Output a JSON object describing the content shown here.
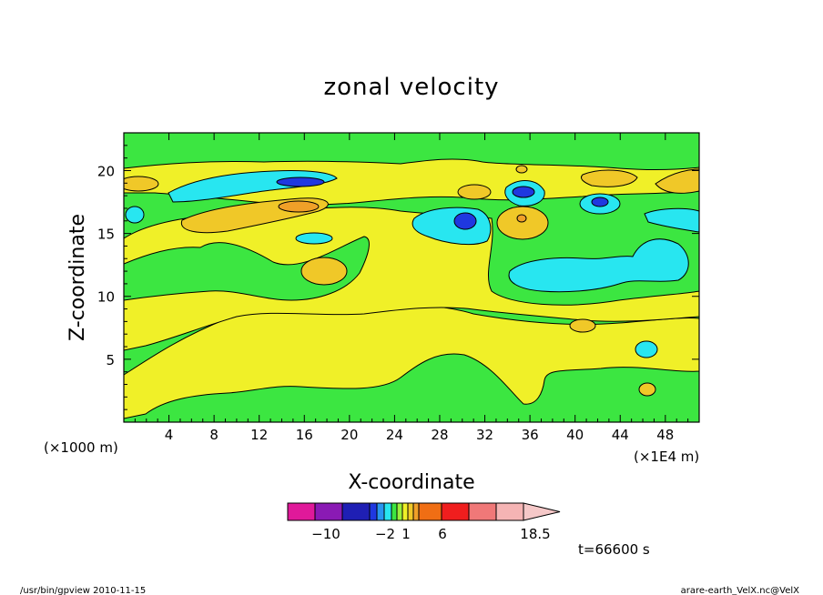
{
  "chart_data": {
    "type": "heatmap",
    "title": "zonal velocity",
    "xlabel": "X-coordinate",
    "ylabel": "Z-coordinate",
    "x_units_left": "(×1000 m)",
    "x_units_right": "(×1E4 m)",
    "x_ticks": [
      4,
      8,
      12,
      16,
      20,
      24,
      28,
      32,
      36,
      40,
      44,
      48
    ],
    "y_ticks": [
      5,
      10,
      15,
      20
    ],
    "xlim": [
      0,
      51
    ],
    "ylim": [
      0,
      23
    ],
    "time_label": "t=66600 s",
    "colorbar": {
      "tick_labels": [
        "−10",
        "−2",
        "1",
        "6",
        "18.5"
      ],
      "colors": [
        "#e0199a",
        "#8a1ab4",
        "#1f1fb4",
        "#1f38e0",
        "#2896f0",
        "#28e6f0",
        "#3ce641",
        "#9bf03c",
        "#f0f028",
        "#f0c828",
        "#f0a028",
        "#f06e14",
        "#f01e1e",
        "#f07878",
        "#f5b4b4",
        "#f5c8c8"
      ]
    },
    "regions": [
      {
        "level": "green",
        "color": "#3ce641",
        "x": [
          0,
          51
        ],
        "y": [
          0,
          23
        ]
      },
      {
        "level": "yellow",
        "color": "#f0f028",
        "x": [
          0,
          51
        ],
        "y": [
          1,
          7
        ]
      },
      {
        "level": "yellow",
        "color": "#f0f028",
        "x": [
          2,
          22
        ],
        "y": [
          8,
          17
        ]
      },
      {
        "level": "yellow",
        "color": "#f0f028",
        "x": [
          24,
          36
        ],
        "y": [
          9,
          15
        ]
      },
      {
        "level": "cyan",
        "color": "#28e6f0",
        "x": [
          34,
          50
        ],
        "y": [
          10,
          13
        ]
      },
      {
        "level": "cyan",
        "color": "#28e6f0",
        "x": [
          4,
          18
        ],
        "y": [
          17.7,
          19.3
        ]
      },
      {
        "level": "blue",
        "color": "#1f38e0",
        "x": [
          14,
          17
        ],
        "y": [
          18.4,
          19
        ]
      },
      {
        "level": "orange",
        "color": "#f0c828",
        "x": [
          6,
          18
        ],
        "y": [
          15.5,
          17.5
        ]
      },
      {
        "level": "cyan",
        "color": "#28e6f0",
        "x": [
          26,
          31
        ],
        "y": [
          15,
          17
        ]
      },
      {
        "level": "blue",
        "color": "#1f38e0",
        "x": [
          29.5,
          31
        ],
        "y": [
          15.2,
          16.5
        ]
      },
      {
        "level": "cyan",
        "color": "#28e6f0",
        "x": [
          33.5,
          37
        ],
        "y": [
          17.5,
          19
        ]
      },
      {
        "level": "blue",
        "color": "#1f38e0",
        "x": [
          34.5,
          36
        ],
        "y": [
          17.8,
          18.8
        ]
      },
      {
        "level": "orange",
        "color": "#f0c828",
        "x": [
          33,
          38
        ],
        "y": [
          14.5,
          17
        ]
      },
      {
        "level": "orange",
        "color": "#f0c828",
        "x": [
          16,
          20
        ],
        "y": [
          10.5,
          13
        ]
      },
      {
        "level": "orange",
        "color": "#f0c828",
        "x": [
          39,
          42
        ],
        "y": [
          7,
          8.5
        ]
      },
      {
        "level": "cyan",
        "color": "#28e6f0",
        "x": [
          45,
          47
        ],
        "y": [
          5,
          6
        ]
      },
      {
        "level": "cyan",
        "color": "#28e6f0",
        "x": [
          41,
          44
        ],
        "y": [
          16.5,
          18
        ]
      },
      {
        "level": "cyan",
        "color": "#28e6f0",
        "x": [
          46,
          51
        ],
        "y": [
          15,
          17
        ]
      }
    ]
  },
  "footer": {
    "left": "/usr/bin/gpview  2010-11-15",
    "right": "arare-earth_VelX.nc@VelX"
  }
}
